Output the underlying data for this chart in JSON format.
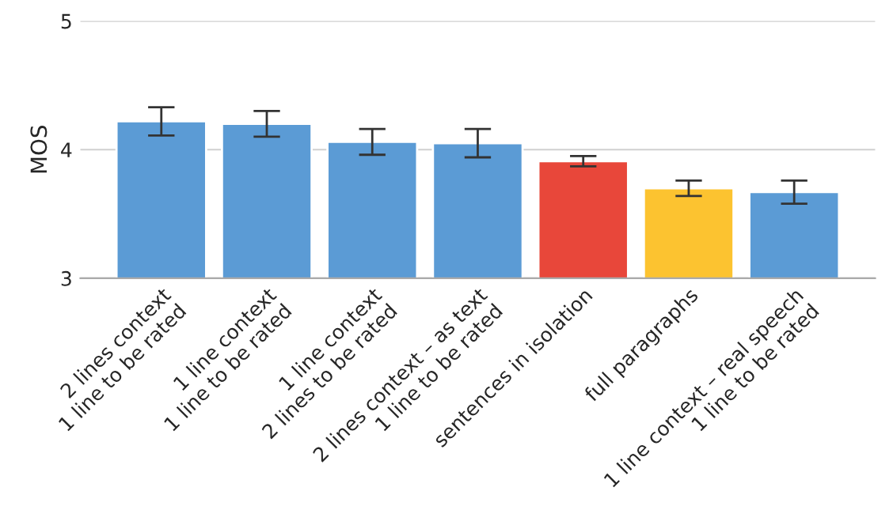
{
  "chart_data": {
    "type": "bar",
    "ylabel": "MOS",
    "categories": [
      "2 lines context\n1 line to be rated",
      "1 line context\n1 line to be rated",
      "1 line context\n2 lines to be rated",
      "2 lines context – as text\n1 line to be rated",
      "sentences in isolation",
      "full paragraphs",
      "1 line context – real speech\n1 line to be rated"
    ],
    "values": [
      4.22,
      4.2,
      4.06,
      4.05,
      3.91,
      3.7,
      3.67
    ],
    "errors": [
      0.11,
      0.1,
      0.1,
      0.11,
      0.04,
      0.06,
      0.09
    ],
    "colors": [
      "#5b9bd5",
      "#5b9bd5",
      "#5b9bd5",
      "#5b9bd5",
      "#e8473a",
      "#fcc330",
      "#5b9bd5"
    ],
    "ylim": [
      3,
      5
    ],
    "yticks": [
      3,
      4,
      5
    ],
    "grid": "y"
  }
}
